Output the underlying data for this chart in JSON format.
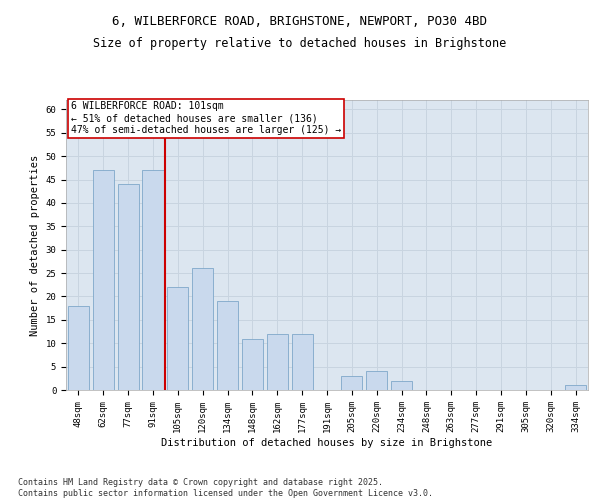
{
  "title_line1": "6, WILBERFORCE ROAD, BRIGHSTONE, NEWPORT, PO30 4BD",
  "title_line2": "Size of property relative to detached houses in Brighstone",
  "xlabel": "Distribution of detached houses by size in Brighstone",
  "ylabel": "Number of detached properties",
  "categories": [
    "48sqm",
    "62sqm",
    "77sqm",
    "91sqm",
    "105sqm",
    "120sqm",
    "134sqm",
    "148sqm",
    "162sqm",
    "177sqm",
    "191sqm",
    "205sqm",
    "220sqm",
    "234sqm",
    "248sqm",
    "263sqm",
    "277sqm",
    "291sqm",
    "305sqm",
    "320sqm",
    "334sqm"
  ],
  "values": [
    18,
    47,
    44,
    47,
    22,
    26,
    19,
    11,
    12,
    12,
    0,
    3,
    4,
    2,
    0,
    0,
    0,
    0,
    0,
    0,
    1
  ],
  "bar_color": "#c9d9ed",
  "bar_edge_color": "#7fa8c9",
  "vline_index": 3.5,
  "vline_color": "#cc0000",
  "annotation_text": "6 WILBERFORCE ROAD: 101sqm\n← 51% of detached houses are smaller (136)\n47% of semi-detached houses are larger (125) →",
  "annotation_box_color": "#ffffff",
  "annotation_box_edge_color": "#cc0000",
  "ylim": [
    0,
    62
  ],
  "yticks": [
    0,
    5,
    10,
    15,
    20,
    25,
    30,
    35,
    40,
    45,
    50,
    55,
    60
  ],
  "grid_color": "#c8d4e0",
  "bg_color": "#dce6f0",
  "footer_text": "Contains HM Land Registry data © Crown copyright and database right 2025.\nContains public sector information licensed under the Open Government Licence v3.0.",
  "title_fontsize": 9,
  "axis_label_fontsize": 7.5,
  "tick_fontsize": 6.5,
  "annotation_fontsize": 7,
  "footer_fontsize": 6
}
